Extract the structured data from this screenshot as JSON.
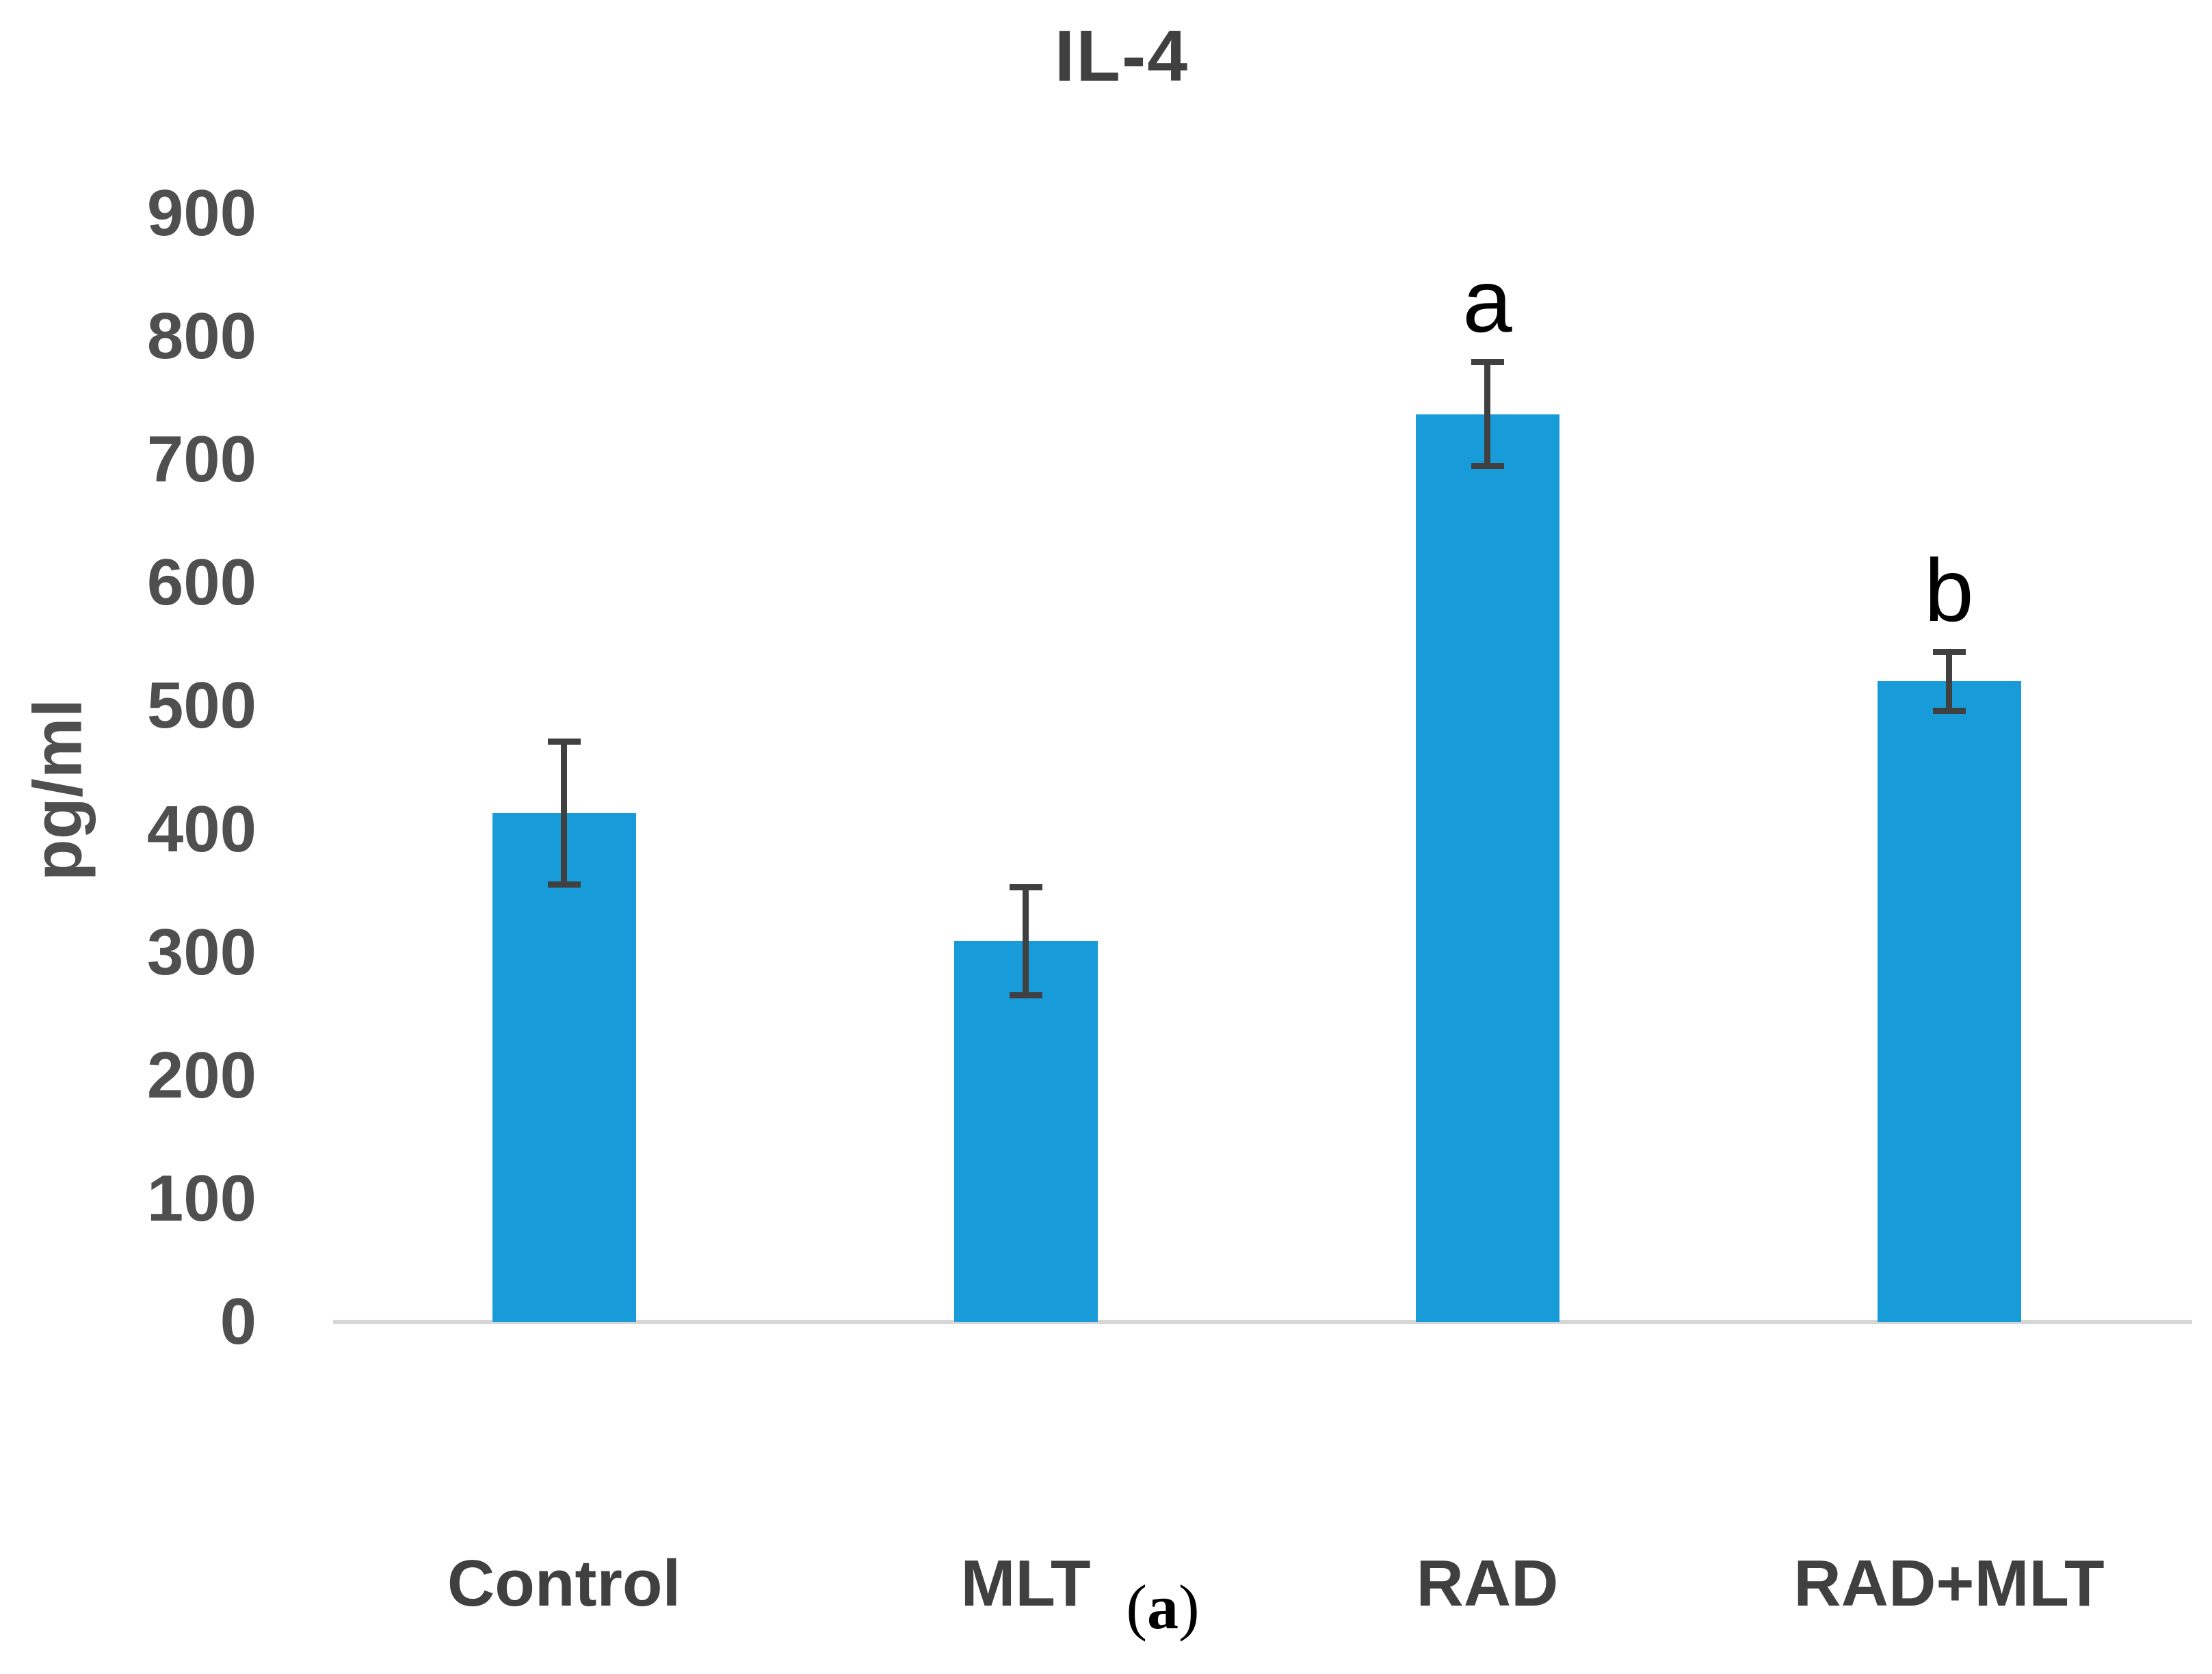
{
  "chart_data": {
    "type": "bar",
    "title": "IL-4",
    "ylabel": "pg/ml",
    "xlabel": "",
    "categories": [
      "Control",
      "MLT",
      "RAD",
      "RAD+MLT"
    ],
    "values": [
      413,
      309,
      737,
      520
    ],
    "error_bars": [
      58,
      44,
      42,
      24
    ],
    "significance_labels": [
      "",
      "",
      "a",
      "b"
    ],
    "ylim": [
      0,
      900
    ],
    "yticks": [
      900,
      800,
      700,
      600,
      500,
      400,
      300,
      200,
      100,
      0
    ],
    "grid": false,
    "legend": false,
    "colors": {
      "bar": "#189CD9",
      "error_bar": "#404040",
      "axis_line": "#D6D6D6",
      "tick_label": "#4F4F4F",
      "category_label": "#404040",
      "title": "#404040",
      "significance_letter": "#000000"
    }
  },
  "caption": {
    "open": "(",
    "letter": "a",
    "close": ")"
  }
}
